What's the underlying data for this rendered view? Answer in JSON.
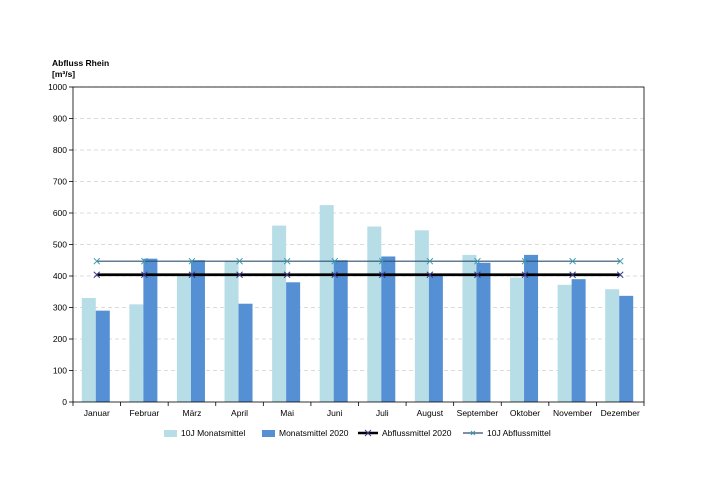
{
  "chart_data": {
    "type": "bar",
    "title": "",
    "ylabel": "Abfluss Rhein",
    "yunit": "[m³/s]",
    "xlabel": "",
    "ylim": [
      0,
      1000
    ],
    "yticks": [
      0,
      100,
      200,
      300,
      400,
      500,
      600,
      700,
      800,
      900,
      1000
    ],
    "grid": true,
    "legend_position": "bottom",
    "categories": [
      "Januar",
      "Februar",
      "März",
      "April",
      "Mai",
      "Juni",
      "Juli",
      "August",
      "September",
      "Oktober",
      "November",
      "Dezember"
    ],
    "series": [
      {
        "name": "10J Monatsmittel",
        "type": "bar",
        "color": "#b7dde6",
        "values": [
          330,
          310,
          405,
          448,
          560,
          625,
          557,
          545,
          467,
          395,
          372,
          358
        ]
      },
      {
        "name": "Monatsmittel 2020",
        "type": "bar",
        "color": "#5590d4",
        "values": [
          290,
          455,
          450,
          312,
          380,
          450,
          462,
          405,
          442,
          467,
          390,
          337
        ]
      },
      {
        "name": "Abflussmittel 2020",
        "type": "line",
        "color": "#000000",
        "marker": "x",
        "values": [
          404,
          404,
          404,
          404,
          404,
          404,
          404,
          404,
          404,
          404,
          404,
          404
        ]
      },
      {
        "name": "10J Abflussmittel",
        "type": "line",
        "color": "#2f4f6f",
        "marker": "x",
        "values": [
          447,
          447,
          447,
          447,
          447,
          447,
          447,
          447,
          447,
          447,
          447,
          447
        ]
      }
    ]
  }
}
